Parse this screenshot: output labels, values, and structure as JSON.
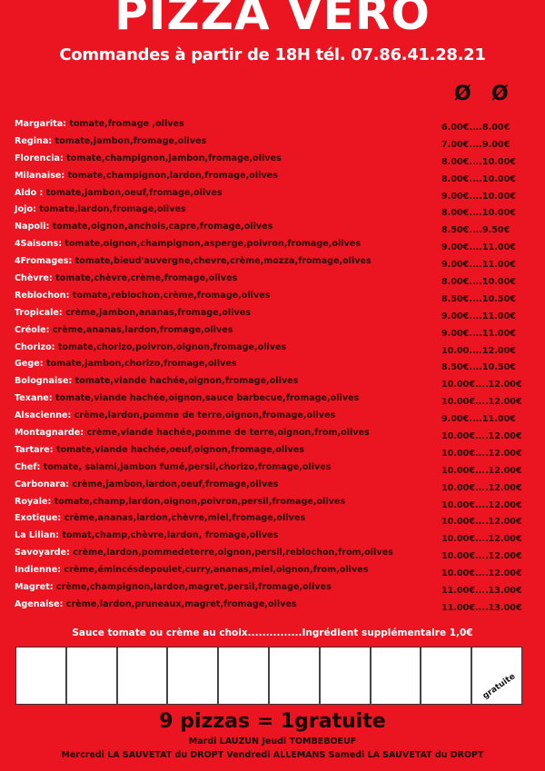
{
  "header": {
    "title": "PIZZA VERO",
    "subtitle": "Commandes à partir de 18H  tél. 07.86.41.28.21",
    "size_icons": [
      "diameter-icon",
      "diameter-icon"
    ],
    "size_symbol": "Ø"
  },
  "menu": [
    {
      "name": "Margarita:",
      "ingredients": "tomate,fromage ,olives",
      "price": "6.00€....8.00€"
    },
    {
      "name": "Regina:",
      "ingredients": "tomate,jambon,fromage,olives",
      "price": "7.00€....9.00€"
    },
    {
      "name": "Florencia:",
      "ingredients": "tomate,champignon,jambon,fromage,olives",
      "price": "8.00€....10.00€"
    },
    {
      "name": "Milanaise:",
      "ingredients": "tomate,champignon,lardon,fromage,olives",
      "price": "8.00€....10.00€"
    },
    {
      "name": "Aldo :",
      "ingredients": "tomate,jambon,oeuf,fromage,olives",
      "price": "9.00€....10.00€"
    },
    {
      "name": "Jojo:",
      "ingredients": "tomate,lardon,fromage,olives",
      "price": "8.00€....10.00€"
    },
    {
      "name": "Napoli:",
      "ingredients": "tomate,oignon,anchois,capre,fromage,olives",
      "price": "8.50€....9.50€"
    },
    {
      "name": "4Saisons:",
      "ingredients": "tomate,oignon,champignon,asperge,poivron,fromage,olives",
      "price": "9.00€....11.00€"
    },
    {
      "name": "4Fromages:",
      "ingredients": "tomate,bieud'auvergne,chevre,crème,mozza,fromage,olives",
      "price": "9.00€....11.00€"
    },
    {
      "name": "Chèvre:",
      "ingredients": "tomate,chèvre,crème,fromage,olives",
      "price": "8.00€....10.00€"
    },
    {
      "name": "Reblochon:",
      "ingredients": "tomate,reblochon,crème,fromage,olives",
      "price": "8.50€....10.50€"
    },
    {
      "name": "Tropicale:",
      "ingredients": "crème,jambon,ananas,fromage,olives",
      "price": "9.00€....11.00€"
    },
    {
      "name": "Créole:",
      "ingredients": "crème,ananas,lardon,fromage,olives",
      "price": "9.00€....11.00€"
    },
    {
      "name": "Chorizo:",
      "ingredients": "tomate,chorizo,poivron,oignon,fromage,olives",
      "price": "10.00....12.00€"
    },
    {
      "name": "Gege:",
      "ingredients": "tomate,jambon,chorizo,fromage,olives",
      "price": "8.50€....10.50€"
    },
    {
      "name": "Bolognaise:",
      "ingredients": "tomate,viande hachée,oignon,fromage,olives",
      "price": "10.00€....12.00€"
    },
    {
      "name": "Texane:",
      "ingredients": "tomate,viande hachée,oignon,sauce barbecue,fromage,olives",
      "price": "10.00€....12.00€"
    },
    {
      "name": "Alsacienne:",
      "ingredients": "crème,lardon,pomme de terre,oignon,fromage,olives",
      "price": "9.00€....11.00€"
    },
    {
      "name": "Montagnarde:",
      "ingredients": "crème,viande hachée,pomme de terre,oignon,from,olives",
      "price": "10.00€....12.00€"
    },
    {
      "name": "Tartare:",
      "ingredients": "tomate,viande hachée,oeuf,oignon,fromage,olives",
      "price": "10.00€....12.00€"
    },
    {
      "name": "Chef:",
      "ingredients": "tomate, salami,jambon fumé,persil,chorizo,fromage,olives",
      "price": "10.00€....12.00€"
    },
    {
      "name": "Carbonara:",
      "ingredients": "crème,jambon,lardon,oeuf,fromage,olives",
      "price": "10.00€....12.00€"
    },
    {
      "name": "Royale:",
      "ingredients": "tomate,champ,lardon,oignon,poivron,persil,fromage,olives",
      "price": "10.00€....12.00€"
    },
    {
      "name": "Exotique:",
      "ingredients": "crème,ananas,lardon,chèvre,miel,fromage,olives",
      "price": "10.00€....12.00€"
    },
    {
      "name": "La Lilian:",
      "ingredients": "tomat,champ,chèvre,lardon, fromage,olives",
      "price": "10.00€....12.00€"
    },
    {
      "name": "Savoyarde:",
      "ingredients": "crème,lardon,pommedeterre,oignon,persil,reblochon,from,olives",
      "price": "10.00€....12.00€"
    },
    {
      "name": "Indienne:",
      "ingredients": "crème,émincésdepoulet,curry,ananas,miel,oignon,from,olives",
      "price": "10.00€....12.00€"
    },
    {
      "name": "Magret:",
      "ingredients": "crème,champignon,lardon,magret,persil,fromage,olives",
      "price": "11.00€....13.00€"
    },
    {
      "name": "Agenaise:",
      "ingredients": "crème,lardon,pruneaux,magret,fromage,olives",
      "price": "11.00€....13.00€"
    }
  ],
  "sauce_note": "Sauce tomate ou crème au choix...............Ingrédient supplémentaire  1,0€",
  "loyalty_card": {
    "cells": 10,
    "free_label": "gratuite"
  },
  "promo": "9 pizzas = 1gratuite",
  "locations": {
    "line1": "Mardi LAUZUN Jeudi TOMBEBOEUF",
    "line2": "Mercredi LA SAUVETAT du DROPT Vendredi ALLEMANS Samedi LA SAUVETAT du DROPT"
  },
  "colors": {
    "background": "#ea1520",
    "name_text": "#ffffff",
    "body_text": "#2a0606"
  }
}
